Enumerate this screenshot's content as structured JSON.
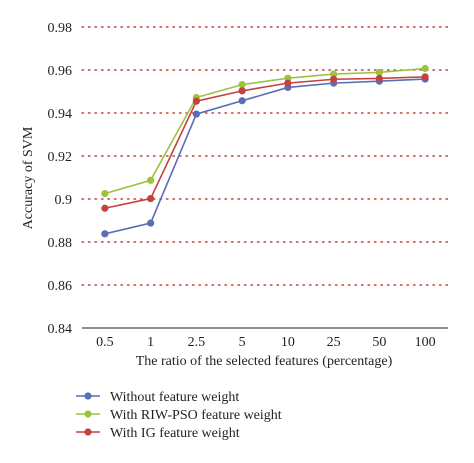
{
  "chart_data": {
    "type": "line",
    "title": "",
    "xlabel": "The ratio of the selected features (percentage)",
    "ylabel": "Accuracy of SVM",
    "categories": [
      "0.5",
      "1",
      "2.5",
      "5",
      "10",
      "25",
      "50",
      "100"
    ],
    "ylim": [
      0.84,
      0.98
    ],
    "yticks": [
      0.84,
      0.86,
      0.88,
      0.9,
      0.92,
      0.94,
      0.96,
      0.98
    ],
    "ytick_labels": [
      "0.84",
      "0.86",
      "0.88",
      "0.9",
      "0.92",
      "0.94",
      "0.96",
      "0.98"
    ],
    "grid": "horizontal dotted",
    "legend_position": "bottom-left",
    "series": [
      {
        "name": "Without feature weight",
        "color": "#5b6db3",
        "values": [
          0.8838,
          0.8888,
          0.9395,
          0.9457,
          0.9519,
          0.9539,
          0.9548,
          0.9558
        ]
      },
      {
        "name": "With RIW-PSO feature weight",
        "color": "#9bc33f",
        "values": [
          0.9025,
          0.9087,
          0.9472,
          0.9532,
          0.9562,
          0.9581,
          0.9589,
          0.9607
        ]
      },
      {
        "name": "With IG feature weight",
        "color": "#c4413d",
        "values": [
          0.8957,
          0.9002,
          0.9455,
          0.9503,
          0.9539,
          0.9557,
          0.9561,
          0.9568
        ]
      }
    ]
  }
}
